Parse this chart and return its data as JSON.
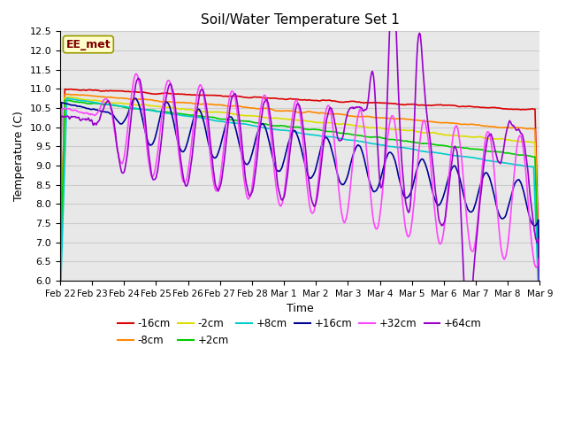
{
  "title": "Soil/Water Temperature Set 1",
  "xlabel": "Time",
  "ylabel": "Temperature (C)",
  "ylim": [
    6.0,
    12.5
  ],
  "annotation": "EE_met",
  "annotation_box_facecolor": "#ffffcc",
  "annotation_box_edgecolor": "#999900",
  "annotation_text_color": "#800000",
  "grid_color": "#cccccc",
  "plot_bg_color": "#e8e8e8",
  "fig_bg_color": "#ffffff",
  "series": [
    {
      "label": "-16cm",
      "color": "#dd0000",
      "lw": 1.2
    },
    {
      "label": "-8cm",
      "color": "#ff8800",
      "lw": 1.2
    },
    {
      "label": "-2cm",
      "color": "#dddd00",
      "lw": 1.2
    },
    {
      "label": "+2cm",
      "color": "#00cc00",
      "lw": 1.2
    },
    {
      "label": "+8cm",
      "color": "#00cccc",
      "lw": 1.2
    },
    {
      "label": "+16cm",
      "color": "#000099",
      "lw": 1.2
    },
    {
      "label": "+32cm",
      "color": "#ff44ff",
      "lw": 1.2
    },
    {
      "label": "+64cm",
      "color": "#9900cc",
      "lw": 1.2
    }
  ],
  "tick_labels": [
    "Feb 22",
    "Feb 23",
    "Feb 24",
    "Feb 25",
    "Feb 26",
    "Feb 27",
    "Feb 28",
    "Mar 1",
    "Mar 2",
    "Mar 3",
    "Mar 4",
    "Mar 5",
    "Mar 6",
    "Mar 7",
    "Mar 8",
    "Mar 9"
  ],
  "y_ticks": [
    6.0,
    6.5,
    7.0,
    7.5,
    8.0,
    8.5,
    9.0,
    9.5,
    10.0,
    10.5,
    11.0,
    11.5,
    12.0,
    12.5
  ]
}
